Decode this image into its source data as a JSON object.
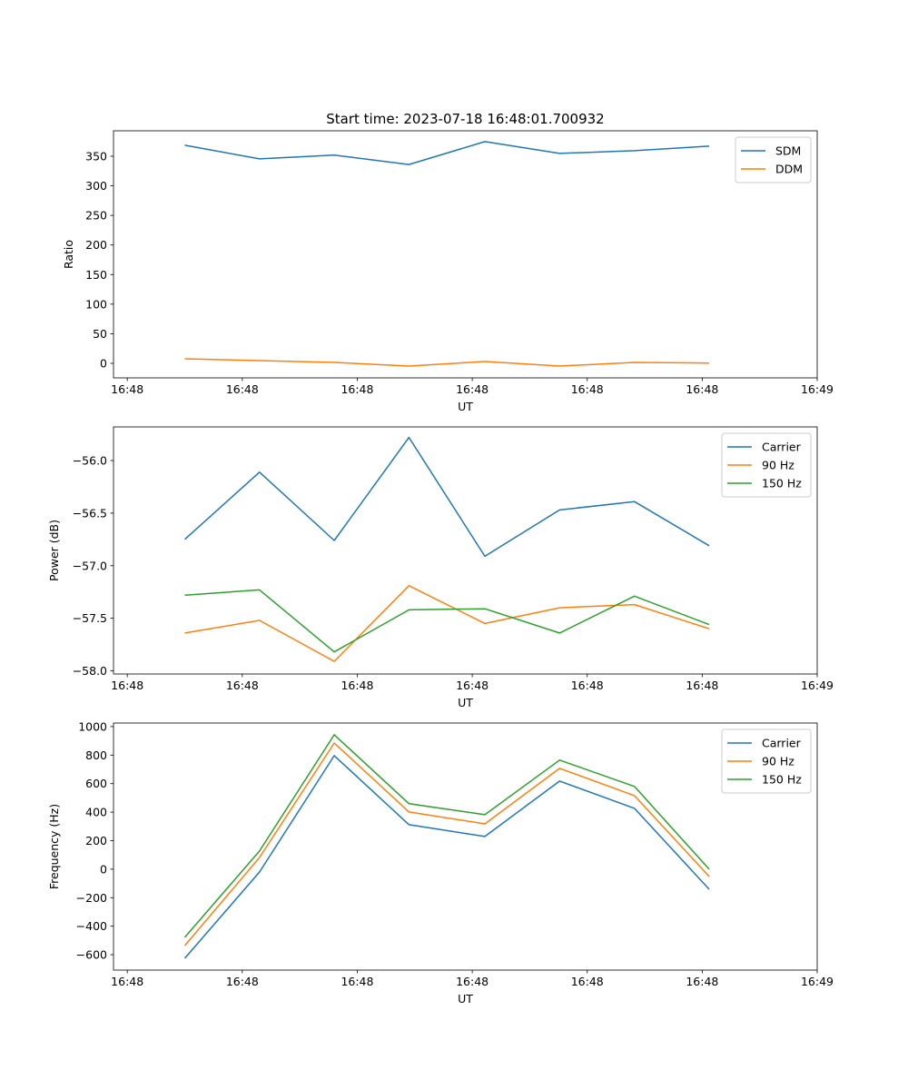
{
  "chart_data": [
    {
      "type": "line",
      "title": "Start time: 2023-07-18 16:48:01.700932",
      "xlabel": "UT",
      "ylabel": "Ratio",
      "xlim": [
        -1.2,
        60
      ],
      "ylim": [
        -24.6,
        393
      ],
      "x": [
        5.0,
        11.5,
        18.0,
        24.5,
        31.1,
        37.6,
        44.1,
        50.6
      ],
      "xticks": [
        0,
        10,
        20,
        30,
        40,
        50,
        60
      ],
      "xtick_labels": [
        "16:48",
        "16:48",
        "16:48",
        "16:48",
        "16:48",
        "16:48",
        "16:49"
      ],
      "yticks": [
        0,
        50,
        100,
        150,
        200,
        250,
        300,
        350
      ],
      "ytick_labels": [
        "0",
        "50",
        "100",
        "150",
        "200",
        "250",
        "300",
        "350"
      ],
      "legend": "top-right",
      "series": [
        {
          "name": "SDM",
          "color": "#1f77b4",
          "values": [
            368.6,
            345.6,
            351.8,
            336.0,
            374.8,
            354.8,
            359.4,
            367.0
          ]
        },
        {
          "name": "DDM",
          "color": "#ff7f0e",
          "values": [
            7.7,
            4.6,
            1.5,
            -4.6,
            3.0,
            -4.6,
            1.5,
            0.5
          ]
        }
      ]
    },
    {
      "type": "line",
      "title": "",
      "xlabel": "UT",
      "ylabel": "Power (dB)",
      "xlim": [
        -1.2,
        60
      ],
      "ylim": [
        -58.03,
        -55.68
      ],
      "x": [
        5.0,
        11.5,
        18.0,
        24.5,
        31.1,
        37.6,
        44.1,
        50.6
      ],
      "xticks": [
        0,
        10,
        20,
        30,
        40,
        50,
        60
      ],
      "xtick_labels": [
        "16:48",
        "16:48",
        "16:48",
        "16:48",
        "16:48",
        "16:48",
        "16:49"
      ],
      "yticks": [
        -58.0,
        -57.5,
        -57.0,
        -56.5,
        -56.0
      ],
      "ytick_labels": [
        "−58.0",
        "−57.5",
        "−57.0",
        "−56.5",
        "−56.0"
      ],
      "legend": "top-right",
      "series": [
        {
          "name": "Carrier",
          "color": "#1f77b4",
          "values": [
            -56.75,
            -56.11,
            -56.76,
            -55.78,
            -56.91,
            -56.47,
            -56.39,
            -56.81
          ]
        },
        {
          "name": "90 Hz",
          "color": "#ff7f0e",
          "values": [
            -57.64,
            -57.52,
            -57.91,
            -57.19,
            -57.55,
            -57.4,
            -57.37,
            -57.6
          ]
        },
        {
          "name": "150 Hz",
          "color": "#2ca02c",
          "values": [
            -57.28,
            -57.23,
            -57.82,
            -57.42,
            -57.41,
            -57.64,
            -57.29,
            -57.56
          ]
        }
      ]
    },
    {
      "type": "line",
      "title": "",
      "xlabel": "UT",
      "ylabel": "Frequency (Hz)",
      "xlim": [
        -1.2,
        60
      ],
      "ylim": [
        -708,
        1025
      ],
      "x": [
        5.0,
        11.5,
        18.0,
        24.5,
        31.1,
        37.6,
        44.1,
        50.6
      ],
      "xticks": [
        0,
        10,
        20,
        30,
        40,
        50,
        60
      ],
      "xtick_labels": [
        "16:48",
        "16:48",
        "16:48",
        "16:48",
        "16:48",
        "16:48",
        "16:49"
      ],
      "yticks": [
        -600,
        -400,
        -200,
        0,
        200,
        400,
        600,
        800,
        1000
      ],
      "ytick_labels": [
        "−600",
        "−400",
        "−200",
        "0",
        "200",
        "400",
        "600",
        "800",
        "1000"
      ],
      "legend": "top-right",
      "series": [
        {
          "name": "Carrier",
          "color": "#1f77b4",
          "values": [
            -625,
            -20,
            796,
            312,
            229,
            618,
            427,
            -141
          ]
        },
        {
          "name": "90 Hz",
          "color": "#ff7f0e",
          "values": [
            -536,
            82,
            885,
            401,
            318,
            707,
            516,
            -51
          ]
        },
        {
          "name": "150 Hz",
          "color": "#2ca02c",
          "values": [
            -478,
            127,
            943,
            459,
            382,
            765,
            580,
            0
          ]
        }
      ]
    }
  ]
}
